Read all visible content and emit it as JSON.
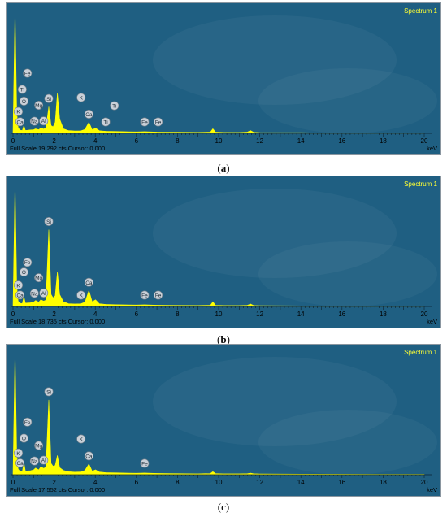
{
  "panels": [
    {
      "caption_letter": "a",
      "spectrum_label": "Spectrum 1",
      "footer": "Full Scale 19,292 cts Cursor: 0.000",
      "unit": "keV",
      "chart_data": {
        "type": "line",
        "title": "",
        "xlabel": "keV",
        "xlim": [
          0,
          20
        ],
        "x_ticks": [
          0,
          2,
          4,
          6,
          8,
          10,
          12,
          14,
          16,
          18,
          20
        ],
        "series": [
          {
            "x": [
              0.0,
              0.1,
              0.18,
              0.25,
              0.3,
              0.35,
              0.45,
              0.53,
              0.6,
              0.7,
              0.85,
              1.0,
              1.1,
              1.25,
              1.35,
              1.49,
              1.6,
              1.74,
              1.85,
              1.95,
              2.05,
              2.16,
              2.27,
              2.45,
              2.7,
              3.0,
              3.3,
              3.5,
              3.69,
              3.85,
              4.01,
              4.2,
              4.5,
              4.8,
              5.2,
              5.6,
              6.0,
              6.4,
              7.0,
              8.0,
              9.0,
              9.6,
              9.72,
              9.85,
              10.2,
              11.0,
              11.4,
              11.55,
              11.7,
              12.0,
              14.0,
              16.0,
              18.0,
              20.0
            ],
            "y": [
              200,
              19292,
              3200,
              900,
              650,
              500,
              420,
              1200,
              450,
              480,
              520,
              560,
              700,
              560,
              800,
              660,
              820,
              4100,
              1200,
              1000,
              1700,
              6200,
              2200,
              700,
              420,
              380,
              390,
              600,
              1700,
              550,
              800,
              400,
              330,
              300,
              270,
              250,
              230,
              260,
              200,
              170,
              150,
              200,
              700,
              200,
              150,
              140,
              200,
              420,
              160,
              130,
              100,
              80,
              60,
              50
            ]
          }
        ],
        "peak_labels": [
          {
            "label": "Ca",
            "x": 0.34
          },
          {
            "label": "K",
            "x": 0.26
          },
          {
            "label": "O",
            "x": 0.53
          },
          {
            "label": "Ti",
            "x": 0.45
          },
          {
            "label": "Fe",
            "x": 0.7
          },
          {
            "label": "Na",
            "x": 1.04
          },
          {
            "label": "Mg",
            "x": 1.25
          },
          {
            "label": "Al",
            "x": 1.49
          },
          {
            "label": "Si",
            "x": 1.74
          },
          {
            "label": "Ca",
            "x": 3.69
          },
          {
            "label": "K",
            "x": 3.31
          },
          {
            "label": "Ti",
            "x": 4.51
          },
          {
            "label": "Ti",
            "x": 4.93
          },
          {
            "label": "Fe",
            "x": 6.4
          },
          {
            "label": "Fe",
            "x": 7.06
          }
        ]
      }
    },
    {
      "caption_letter": "b",
      "spectrum_label": "Spectrum 1",
      "footer": "Full Scale 18,735 cts Cursor: 0.000",
      "unit": "keV",
      "chart_data": {
        "type": "line",
        "title": "",
        "xlabel": "keV",
        "xlim": [
          0,
          20
        ],
        "x_ticks": [
          0,
          2,
          4,
          6,
          8,
          10,
          12,
          14,
          16,
          18,
          20
        ],
        "series": [
          {
            "x": [
              0.0,
              0.1,
              0.18,
              0.25,
              0.3,
              0.35,
              0.45,
              0.53,
              0.6,
              0.7,
              0.85,
              1.0,
              1.1,
              1.25,
              1.35,
              1.49,
              1.6,
              1.74,
              1.85,
              1.95,
              2.05,
              2.16,
              2.27,
              2.45,
              2.7,
              3.0,
              3.3,
              3.5,
              3.69,
              3.85,
              4.01,
              4.2,
              4.5,
              5.0,
              5.6,
              6.0,
              6.4,
              7.0,
              8.0,
              9.0,
              9.6,
              9.72,
              9.85,
              10.2,
              11.0,
              11.4,
              11.55,
              11.7,
              12.0,
              14.0,
              16.0,
              18.0,
              20.0
            ],
            "y": [
              200,
              18735,
              3000,
              800,
              600,
              480,
              420,
              1500,
              500,
              520,
              560,
              650,
              900,
              650,
              1000,
              800,
              950,
              11500,
              1800,
              1300,
              1600,
              5200,
              1800,
              700,
              430,
              380,
              400,
              650,
              2400,
              700,
              1000,
              400,
              320,
              270,
              240,
              220,
              250,
              190,
              160,
              140,
              180,
              700,
              180,
              140,
              130,
              180,
              380,
              150,
              120,
              90,
              70,
              55,
              45
            ]
          }
        ],
        "peak_labels": [
          {
            "label": "Ca",
            "x": 0.34
          },
          {
            "label": "K",
            "x": 0.26
          },
          {
            "label": "O",
            "x": 0.53
          },
          {
            "label": "Fe",
            "x": 0.7
          },
          {
            "label": "Na",
            "x": 1.04
          },
          {
            "label": "Mg",
            "x": 1.25
          },
          {
            "label": "Al",
            "x": 1.49
          },
          {
            "label": "Si",
            "x": 1.74
          },
          {
            "label": "Ca",
            "x": 3.69
          },
          {
            "label": "K",
            "x": 3.31
          },
          {
            "label": "Fe",
            "x": 6.4
          },
          {
            "label": "Fe",
            "x": 7.06
          }
        ]
      }
    },
    {
      "caption_letter": "c",
      "spectrum_label": "Spectrum 1",
      "footer": "Full Scale 17,552 cts Cursor: 0.000",
      "unit": "keV",
      "chart_data": {
        "type": "line",
        "title": "",
        "xlabel": "keV",
        "xlim": [
          0,
          20
        ],
        "x_ticks": [
          0,
          2,
          4,
          6,
          8,
          10,
          12,
          14,
          16,
          18,
          20
        ],
        "series": [
          {
            "x": [
              0.0,
              0.1,
              0.18,
              0.25,
              0.3,
              0.35,
              0.45,
              0.53,
              0.6,
              0.7,
              0.85,
              1.0,
              1.1,
              1.25,
              1.35,
              1.49,
              1.6,
              1.74,
              1.85,
              1.95,
              2.05,
              2.16,
              2.27,
              2.45,
              2.7,
              3.0,
              3.3,
              3.5,
              3.69,
              3.85,
              4.01,
              4.2,
              4.5,
              5.0,
              5.6,
              6.0,
              6.4,
              7.0,
              8.0,
              9.0,
              9.6,
              9.72,
              9.85,
              10.2,
              11.0,
              11.4,
              11.55,
              11.7,
              12.0,
              14.0,
              16.0,
              18.0,
              20.0
            ],
            "y": [
              200,
              17552,
              2800,
              800,
              600,
              480,
              420,
              1700,
              520,
              540,
              560,
              680,
              950,
              680,
              1100,
              900,
              1050,
              10500,
              1600,
              1200,
              1300,
              2700,
              1000,
              600,
              420,
              370,
              390,
              600,
              1500,
              500,
              700,
              380,
              300,
              260,
              230,
              210,
              240,
              180,
              150,
              130,
              170,
              420,
              170,
              130,
              120,
              150,
              230,
              140,
              110,
              85,
              65,
              50,
              40
            ]
          }
        ],
        "peak_labels": [
          {
            "label": "Ca",
            "x": 0.34
          },
          {
            "label": "K",
            "x": 0.26
          },
          {
            "label": "O",
            "x": 0.53
          },
          {
            "label": "Fe",
            "x": 0.7
          },
          {
            "label": "Na",
            "x": 1.04
          },
          {
            "label": "Mg",
            "x": 1.25
          },
          {
            "label": "Al",
            "x": 1.49
          },
          {
            "label": "Si",
            "x": 1.74
          },
          {
            "label": "Ca",
            "x": 3.69
          },
          {
            "label": "K",
            "x": 3.31
          },
          {
            "label": "Fe",
            "x": 6.4
          }
        ]
      }
    }
  ],
  "colors": {
    "background": "#1f5f82",
    "spectrum_fill": "#ffff00",
    "axis_text": "#000000",
    "spectrum_label": "#ffff33",
    "marker_fill": "#c9d0d8"
  }
}
